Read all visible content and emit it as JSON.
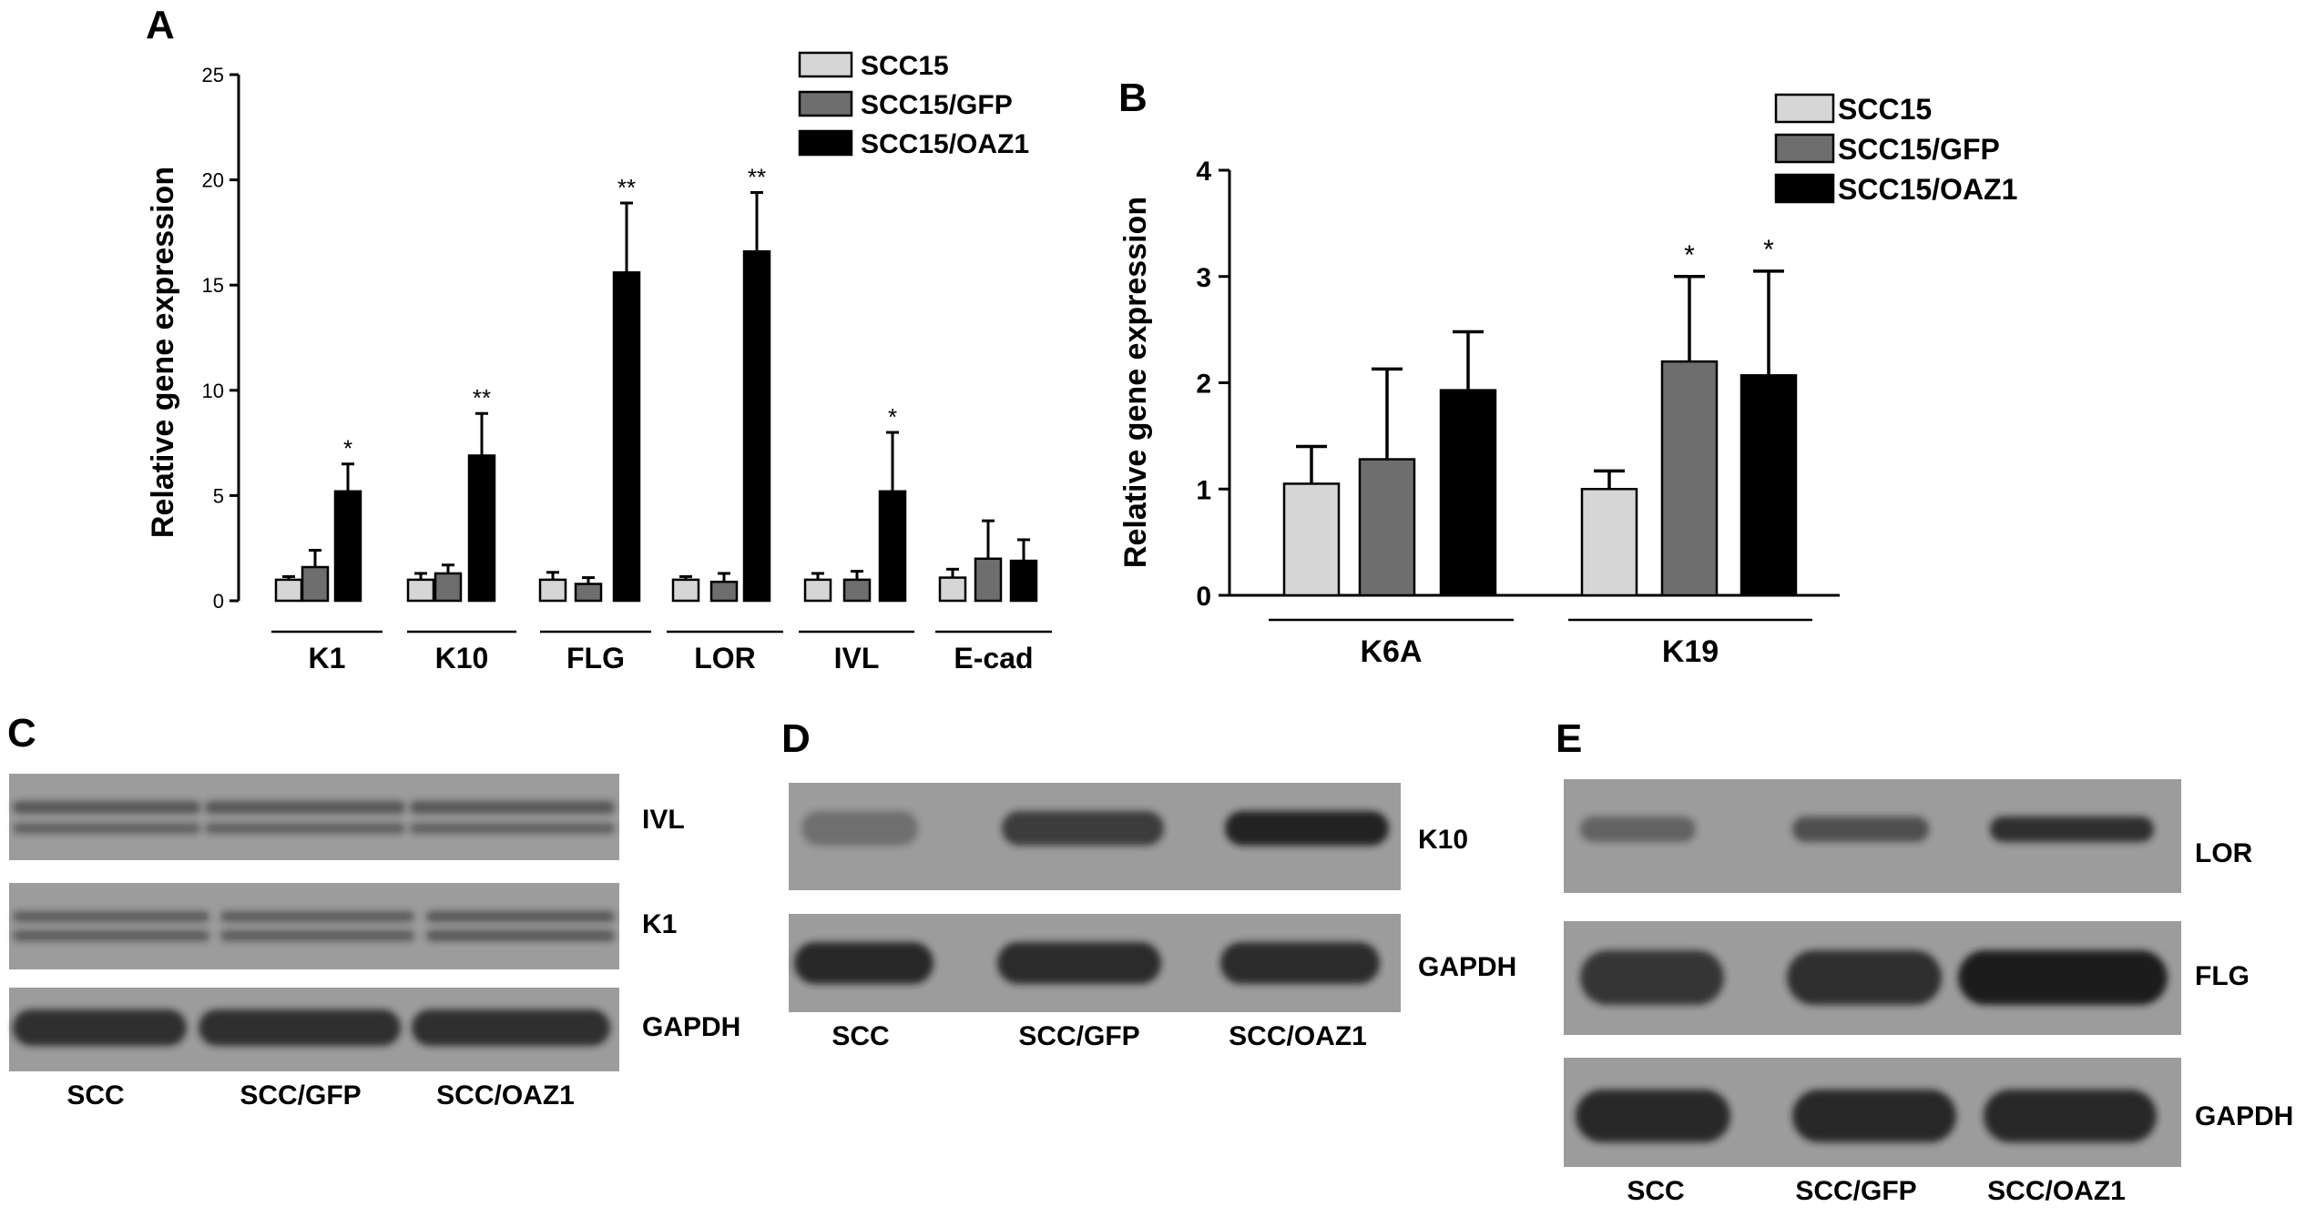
{
  "colors": {
    "scc15": "#d6d6d6",
    "gfp": "#6e6e6e",
    "oaz1": "#000000",
    "blot_bg": "#9c9c9c",
    "band": "#1e1e1e"
  },
  "chart_data": [
    {
      "panel": "A",
      "type": "bar",
      "title": "",
      "xlabel": "",
      "ylabel": "Relative gene expression",
      "ylim": [
        0,
        25
      ],
      "yticks": [
        "0",
        "5",
        "10",
        "15",
        "20",
        "25"
      ],
      "categories": [
        "K1",
        "K10",
        "FLG",
        "LOR",
        "IVL",
        "E-cad"
      ],
      "series": [
        {
          "name": "SCC15",
          "values": [
            1.0,
            1.0,
            1.0,
            1.0,
            1.0,
            1.1
          ],
          "errors": [
            0.15,
            0.3,
            0.35,
            0.15,
            0.3,
            0.4
          ]
        },
        {
          "name": "SCC15/GFP",
          "values": [
            1.6,
            1.3,
            0.8,
            0.9,
            1.0,
            2.0
          ],
          "errors": [
            0.8,
            0.4,
            0.3,
            0.4,
            0.4,
            1.8
          ]
        },
        {
          "name": "SCC15/OAZ1",
          "values": [
            5.2,
            6.9,
            15.6,
            16.6,
            5.2,
            1.9
          ],
          "errors": [
            1.3,
            2.0,
            3.3,
            2.8,
            2.8,
            1.0
          ]
        }
      ],
      "significance": [
        "*",
        "**",
        "**",
        "**",
        "*",
        ""
      ],
      "legend": [
        "SCC15",
        "SCC15/GFP",
        "SCC15/OAZ1"
      ],
      "legend_position": "top-right",
      "grid": false
    },
    {
      "panel": "B",
      "type": "bar",
      "title": "",
      "xlabel": "",
      "ylabel": "Relative gene expression",
      "ylim": [
        0,
        4
      ],
      "yticks": [
        "0",
        "1",
        "2",
        "3",
        "4"
      ],
      "categories": [
        "K6A",
        "K19"
      ],
      "series": [
        {
          "name": "SCC15",
          "values": [
            1.05,
            1.0
          ],
          "errors": [
            0.35,
            0.17
          ]
        },
        {
          "name": "SCC15/GFP",
          "values": [
            1.28,
            2.2
          ],
          "errors": [
            0.85,
            0.8
          ]
        },
        {
          "name": "SCC15/OAZ1",
          "values": [
            1.93,
            2.07
          ],
          "errors": [
            0.55,
            0.98
          ]
        }
      ],
      "significance_gfp": [
        "",
        "*"
      ],
      "significance_oaz1": [
        "",
        "*"
      ],
      "legend": [
        "SCC15",
        "SCC15/GFP",
        "SCC15/OAZ1"
      ],
      "legend_position": "top-right",
      "grid": false
    }
  ],
  "panels": {
    "a": {
      "letter": "A"
    },
    "b": {
      "letter": "B"
    },
    "c": {
      "letter": "C",
      "bands": [
        "IVL",
        "K1",
        "GAPDH"
      ],
      "lanes": [
        "SCC",
        "SCC/GFP",
        "SCC/OAZ1"
      ],
      "intensity": {
        "IVL": [
          0.55,
          0.55,
          0.55
        ],
        "K1": [
          0.55,
          0.55,
          0.6
        ],
        "GAPDH": [
          0.85,
          0.85,
          0.85
        ]
      }
    },
    "d": {
      "letter": "D",
      "bands": [
        "K10",
        "GAPDH"
      ],
      "lanes": [
        "SCC",
        "SCC/GFP",
        "SCC/OAZ1"
      ],
      "intensity": {
        "K10": [
          0.35,
          0.75,
          0.95
        ],
        "GAPDH": [
          0.9,
          0.88,
          0.88
        ]
      }
    },
    "e": {
      "letter": "E",
      "bands": [
        "LOR",
        "FLG",
        "GAPDH"
      ],
      "lanes": [
        "SCC",
        "SCC/GFP",
        "SCC/OAZ1"
      ],
      "intensity": {
        "LOR": [
          0.45,
          0.6,
          0.85
        ],
        "FLG": [
          0.8,
          0.85,
          1.0
        ],
        "GAPDH": [
          0.9,
          0.9,
          0.9
        ]
      }
    }
  }
}
